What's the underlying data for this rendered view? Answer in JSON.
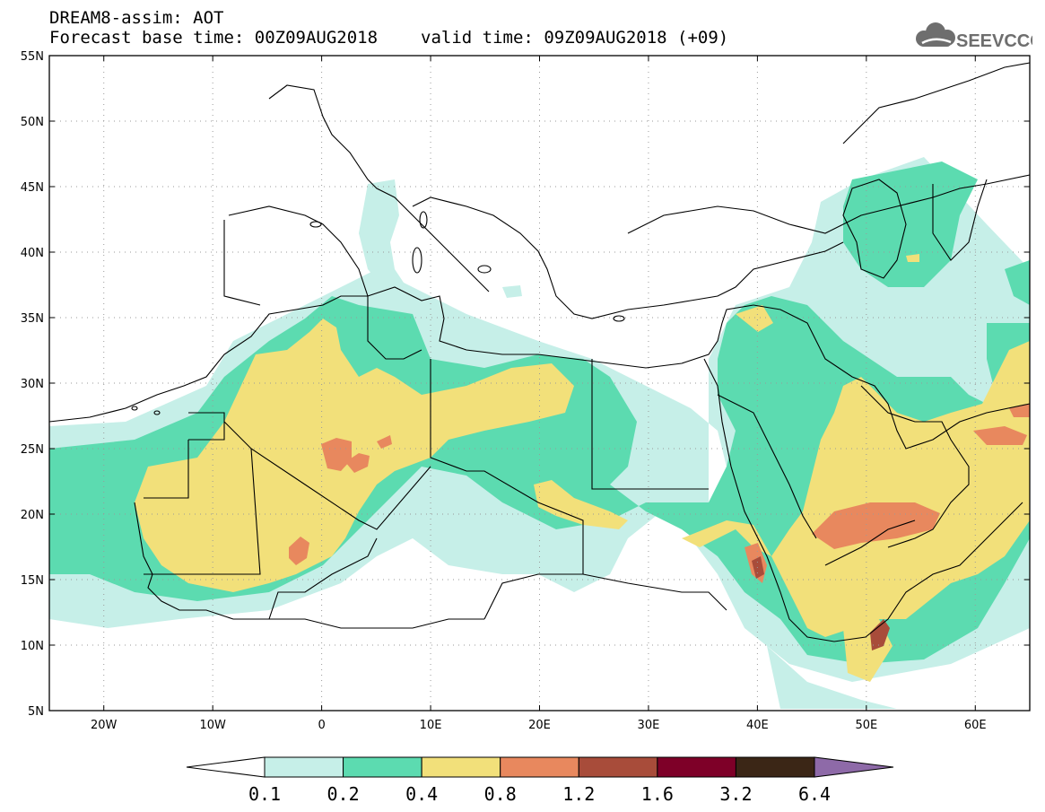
{
  "header": {
    "line1": "DREAM8-assim: AOT",
    "base_time": "Forecast base time: 00Z09AUG2018",
    "valid_time": "valid time: 09Z09AUG2018 (+09)"
  },
  "logo": {
    "text": "SEEVCCC",
    "icon": "cloud-icon",
    "color": "#6e6e6e"
  },
  "map": {
    "lon_range": [
      -25,
      65
    ],
    "lat_range": [
      5,
      55
    ],
    "lat_labels": [
      "55N",
      "50N",
      "45N",
      "40N",
      "35N",
      "30N",
      "25N",
      "20N",
      "15N",
      "10N",
      "5N"
    ],
    "lon_labels": [
      "20W",
      "10W",
      "0",
      "10E",
      "20E",
      "30E",
      "40E",
      "50E",
      "60E"
    ],
    "gridlines": true,
    "grid_style": "dotted"
  },
  "colorbar": {
    "levels": [
      "0.1",
      "0.2",
      "0.4",
      "0.8",
      "1.2",
      "1.6",
      "3.2",
      "6.4"
    ],
    "colors": [
      "#c6efe8",
      "#5cdbb0",
      "#f2e07a",
      "#e8885e",
      "#a84c3a",
      "#7e0028",
      "#3b2616"
    ],
    "under_color": "#ffffff",
    "over_color": "#8e6aa8"
  }
}
